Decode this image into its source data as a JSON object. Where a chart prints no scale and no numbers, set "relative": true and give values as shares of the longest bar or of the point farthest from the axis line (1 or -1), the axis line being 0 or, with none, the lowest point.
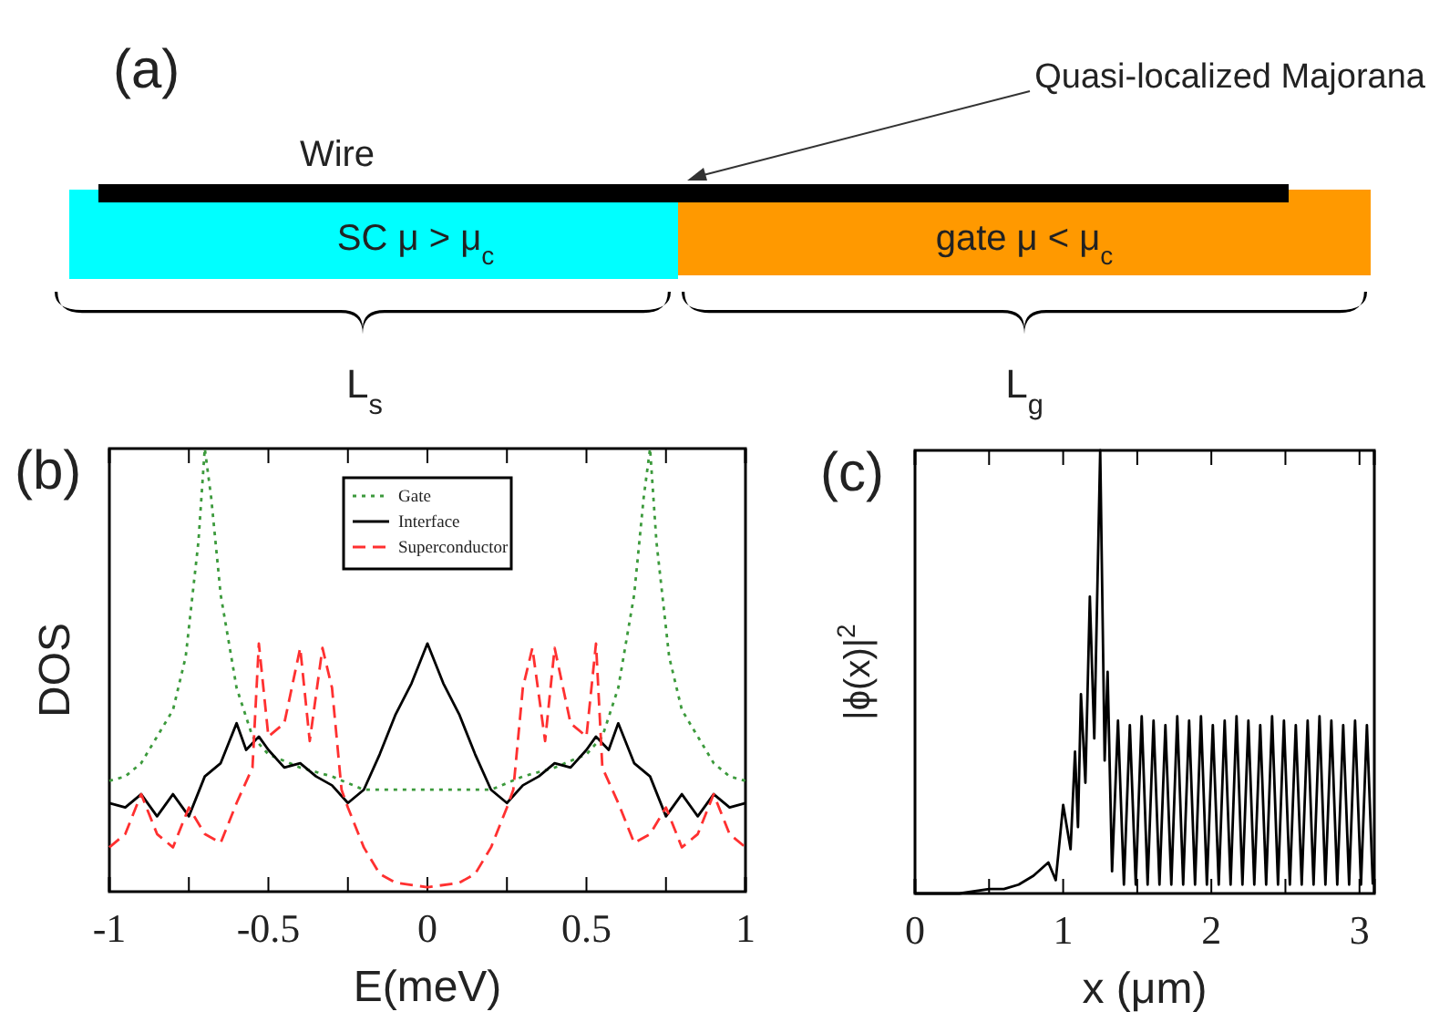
{
  "chart_data": [
    {
      "type": "other",
      "title": "(a)",
      "annotations": [
        "Quasi-localized Majorana",
        "Wire",
        "SC  μ > μ$_{c}$",
        "gate    μ < μ$_{c}$",
        "L$_{s}$",
        "L$_{g}$"
      ]
    },
    {
      "type": "line",
      "title": "(b)",
      "xlabel": "E(meV)",
      "ylabel": "DOS",
      "relative": true,
      "xlim": [
        -1,
        1
      ],
      "xticks": [
        -1,
        {
          "value": -0.75,
          "label": null
        },
        -0.5,
        {
          "value": -0.25,
          "label": null
        },
        0,
        {
          "value": 0.25,
          "label": null
        },
        0.5,
        {
          "value": 0.75,
          "label": null
        },
        1
      ],
      "legend": "top",
      "series": [
        {
          "name": "Gate",
          "color": "#3c9a3c",
          "line_style": "dotted",
          "x": [
            -1,
            -0.95,
            -0.9,
            -0.85,
            -0.8,
            -0.76,
            -0.72,
            -0.7,
            -0.68,
            -0.65,
            -0.6,
            -0.55,
            -0.5,
            -0.4,
            -0.3,
            -0.2,
            -0.1,
            0,
            0.1,
            0.2,
            0.3,
            0.4,
            0.5,
            0.55,
            0.6,
            0.65,
            0.68,
            0.7,
            0.72,
            0.76,
            0.8,
            0.85,
            0.9,
            0.95,
            1
          ],
          "values": [
            0.25,
            0.26,
            0.29,
            0.35,
            0.41,
            0.53,
            0.79,
            1.0,
            0.89,
            0.67,
            0.46,
            0.35,
            0.31,
            0.28,
            0.26,
            0.23,
            0.23,
            0.23,
            0.23,
            0.23,
            0.26,
            0.28,
            0.31,
            0.35,
            0.46,
            0.67,
            0.89,
            1.0,
            0.79,
            0.53,
            0.41,
            0.35,
            0.29,
            0.26,
            0.25
          ]
        },
        {
          "name": "Interface",
          "color": "#000000",
          "line_style": "solid",
          "x": [
            -1,
            -0.95,
            -0.9,
            -0.85,
            -0.8,
            -0.75,
            -0.7,
            -0.65,
            -0.6,
            -0.57,
            -0.53,
            -0.5,
            -0.45,
            -0.4,
            -0.35,
            -0.3,
            -0.25,
            -0.2,
            -0.15,
            -0.1,
            -0.05,
            0,
            0.05,
            0.1,
            0.15,
            0.2,
            0.25,
            0.3,
            0.35,
            0.4,
            0.45,
            0.5,
            0.53,
            0.57,
            0.6,
            0.65,
            0.7,
            0.75,
            0.8,
            0.85,
            0.9,
            0.95,
            1
          ],
          "values": [
            0.2,
            0.19,
            0.22,
            0.17,
            0.22,
            0.17,
            0.26,
            0.29,
            0.38,
            0.32,
            0.35,
            0.32,
            0.28,
            0.29,
            0.26,
            0.24,
            0.2,
            0.23,
            0.31,
            0.4,
            0.47,
            0.56,
            0.47,
            0.4,
            0.31,
            0.23,
            0.2,
            0.24,
            0.26,
            0.29,
            0.28,
            0.32,
            0.35,
            0.32,
            0.38,
            0.29,
            0.26,
            0.17,
            0.22,
            0.17,
            0.22,
            0.19,
            0.2
          ]
        },
        {
          "name": "Superconductor",
          "color": "#ff3030",
          "line_style": "dashed",
          "x": [
            -1,
            -0.95,
            -0.9,
            -0.85,
            -0.8,
            -0.75,
            -0.7,
            -0.65,
            -0.6,
            -0.55,
            -0.53,
            -0.5,
            -0.45,
            -0.4,
            -0.37,
            -0.33,
            -0.3,
            -0.27,
            -0.25,
            -0.2,
            -0.15,
            -0.1,
            0,
            0.1,
            0.15,
            0.2,
            0.25,
            0.27,
            0.3,
            0.33,
            0.37,
            0.4,
            0.45,
            0.5,
            0.53,
            0.55,
            0.6,
            0.65,
            0.7,
            0.75,
            0.8,
            0.85,
            0.9,
            0.95,
            1
          ],
          "values": [
            0.1,
            0.13,
            0.22,
            0.13,
            0.1,
            0.19,
            0.13,
            0.11,
            0.2,
            0.28,
            0.56,
            0.35,
            0.38,
            0.55,
            0.34,
            0.55,
            0.46,
            0.23,
            0.19,
            0.1,
            0.04,
            0.02,
            0.01,
            0.02,
            0.04,
            0.1,
            0.19,
            0.23,
            0.46,
            0.55,
            0.34,
            0.55,
            0.38,
            0.35,
            0.56,
            0.28,
            0.2,
            0.11,
            0.13,
            0.19,
            0.1,
            0.13,
            0.22,
            0.13,
            0.1
          ]
        }
      ]
    },
    {
      "type": "line",
      "title": "(c)",
      "xlabel": "x (μm)",
      "ylabel": "|ϕ(x)|$^{2}$",
      "relative": true,
      "xlim": [
        0,
        3.1
      ],
      "xticks": [
        0,
        {
          "value": 0.5,
          "label": null
        },
        1,
        {
          "value": 1.5,
          "label": null
        },
        2,
        {
          "value": 2.5,
          "label": null
        },
        3
      ],
      "series": [
        {
          "color": "#000000",
          "line_style": "solid",
          "x": [
            0,
            0.3,
            0.5,
            0.6,
            0.7,
            0.8,
            0.9,
            0.95,
            1.0,
            1.05,
            1.08,
            1.1,
            1.12,
            1.15,
            1.18,
            1.21,
            1.25,
            1.28,
            1.3,
            1.33,
            1.37,
            1.41,
            1.45,
            1.49,
            1.53,
            1.57,
            1.61,
            1.65,
            1.69,
            1.73,
            1.77,
            1.81,
            1.85,
            1.89,
            1.93,
            1.97,
            2.01,
            2.05,
            2.09,
            2.13,
            2.17,
            2.21,
            2.25,
            2.29,
            2.33,
            2.37,
            2.41,
            2.45,
            2.49,
            2.53,
            2.57,
            2.61,
            2.65,
            2.69,
            2.73,
            2.77,
            2.81,
            2.85,
            2.89,
            2.93,
            2.97,
            3.01,
            3.05,
            3.09
          ],
          "values": [
            0,
            0,
            0.01,
            0.01,
            0.02,
            0.04,
            0.07,
            0.03,
            0.2,
            0.1,
            0.32,
            0.15,
            0.45,
            0.25,
            0.67,
            0.35,
            1.0,
            0.3,
            0.5,
            0.05,
            0.39,
            0.02,
            0.38,
            0.02,
            0.4,
            0.02,
            0.39,
            0.02,
            0.38,
            0.02,
            0.4,
            0.02,
            0.39,
            0.02,
            0.4,
            0.02,
            0.38,
            0.02,
            0.39,
            0.02,
            0.4,
            0.02,
            0.39,
            0.02,
            0.38,
            0.02,
            0.4,
            0.02,
            0.39,
            0.02,
            0.38,
            0.02,
            0.39,
            0.02,
            0.4,
            0.02,
            0.39,
            0.02,
            0.38,
            0.02,
            0.39,
            0.02,
            0.38,
            0.02
          ]
        }
      ]
    }
  ]
}
